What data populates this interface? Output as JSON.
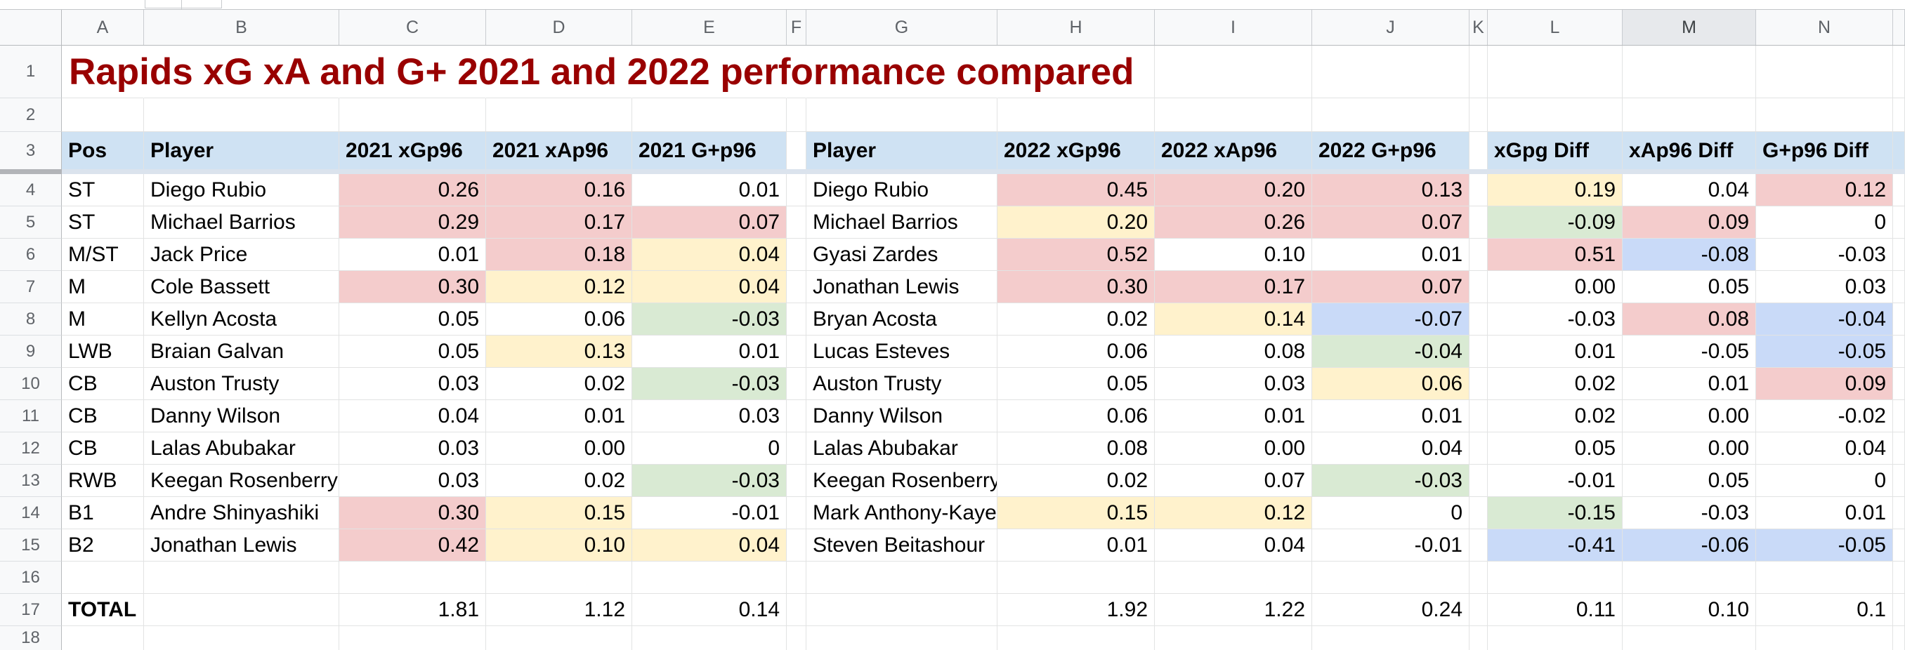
{
  "title": "Rapids xG xA and G+ 2021 and 2022 performance compared",
  "colors": {
    "title_text": "#990000",
    "header_fill": "#cfe2f3",
    "red": "#f4cccc",
    "yellow": "#fff2cc",
    "green": "#d9ead3",
    "blue": "#c9daf8"
  },
  "column_letters": [
    "A",
    "B",
    "C",
    "D",
    "E",
    "F",
    "G",
    "H",
    "I",
    "J",
    "K",
    "L",
    "M",
    "N"
  ],
  "selected_column": "M",
  "visible_row_numbers": [
    1,
    2,
    3,
    4,
    5,
    6,
    7,
    8,
    9,
    10,
    11,
    12,
    13,
    14,
    15,
    16,
    17,
    18
  ],
  "table": {
    "headers_2021": [
      "Pos",
      "Player",
      "2021 xGp96",
      "2021 xAp96",
      "2021 G+p96"
    ],
    "headers_2022": [
      "Player",
      "2022 xGp96",
      "2022 xAp96",
      "2022 G+p96"
    ],
    "headers_diff": [
      "xGpg Diff",
      "xAp96 Diff",
      "G+p96 Diff"
    ],
    "rows": [
      {
        "row": 4,
        "pos": "ST",
        "player_2021": "Diego Rubio",
        "v2021": [
          [
            "0.26",
            "red"
          ],
          [
            "0.16",
            "red"
          ],
          [
            "0.01",
            null
          ]
        ],
        "player_2022": "Diego Rubio",
        "v2022": [
          [
            "0.45",
            "red"
          ],
          [
            "0.20",
            "red"
          ],
          [
            "0.13",
            "red"
          ]
        ],
        "vdiff": [
          [
            "0.19",
            "yellow"
          ],
          [
            "0.04",
            null
          ],
          [
            "0.12",
            "red"
          ]
        ]
      },
      {
        "row": 5,
        "pos": "ST",
        "player_2021": "Michael Barrios",
        "v2021": [
          [
            "0.29",
            "red"
          ],
          [
            "0.17",
            "red"
          ],
          [
            "0.07",
            "red"
          ]
        ],
        "player_2022": "Michael Barrios",
        "v2022": [
          [
            "0.20",
            "yellow"
          ],
          [
            "0.26",
            "red"
          ],
          [
            "0.07",
            "red"
          ]
        ],
        "vdiff": [
          [
            "-0.09",
            "green"
          ],
          [
            "0.09",
            "red"
          ],
          [
            "0",
            null
          ]
        ]
      },
      {
        "row": 6,
        "pos": "M/ST",
        "player_2021": "Jack Price",
        "v2021": [
          [
            "0.01",
            null
          ],
          [
            "0.18",
            "red"
          ],
          [
            "0.04",
            "yellow"
          ]
        ],
        "player_2022": "Gyasi Zardes",
        "v2022": [
          [
            "0.52",
            "red"
          ],
          [
            "0.10",
            null
          ],
          [
            "0.01",
            null
          ]
        ],
        "vdiff": [
          [
            "0.51",
            "red"
          ],
          [
            "-0.08",
            "blue"
          ],
          [
            "-0.03",
            null
          ]
        ]
      },
      {
        "row": 7,
        "pos": "M",
        "player_2021": "Cole Bassett",
        "v2021": [
          [
            "0.30",
            "red"
          ],
          [
            "0.12",
            "yellow"
          ],
          [
            "0.04",
            "yellow"
          ]
        ],
        "player_2022": "Jonathan Lewis",
        "v2022": [
          [
            "0.30",
            "red"
          ],
          [
            "0.17",
            "red"
          ],
          [
            "0.07",
            "red"
          ]
        ],
        "vdiff": [
          [
            "0.00",
            null
          ],
          [
            "0.05",
            null
          ],
          [
            "0.03",
            null
          ]
        ]
      },
      {
        "row": 8,
        "pos": "M",
        "player_2021": "Kellyn Acosta",
        "v2021": [
          [
            "0.05",
            null
          ],
          [
            "0.06",
            null
          ],
          [
            "-0.03",
            "green"
          ]
        ],
        "player_2022": "Bryan Acosta",
        "v2022": [
          [
            "0.02",
            null
          ],
          [
            "0.14",
            "yellow"
          ],
          [
            "-0.07",
            "blue"
          ]
        ],
        "vdiff": [
          [
            "-0.03",
            null
          ],
          [
            "0.08",
            "red"
          ],
          [
            "-0.04",
            "blue"
          ]
        ]
      },
      {
        "row": 9,
        "pos": "LWB",
        "player_2021": "Braian Galvan",
        "v2021": [
          [
            "0.05",
            null
          ],
          [
            "0.13",
            "yellow"
          ],
          [
            "0.01",
            null
          ]
        ],
        "player_2022": "Lucas Esteves",
        "v2022": [
          [
            "0.06",
            null
          ],
          [
            "0.08",
            null
          ],
          [
            "-0.04",
            "green"
          ]
        ],
        "vdiff": [
          [
            "0.01",
            null
          ],
          [
            "-0.05",
            null
          ],
          [
            "-0.05",
            "blue"
          ]
        ]
      },
      {
        "row": 10,
        "pos": "CB",
        "player_2021": "Auston Trusty",
        "v2021": [
          [
            "0.03",
            null
          ],
          [
            "0.02",
            null
          ],
          [
            "-0.03",
            "green"
          ]
        ],
        "player_2022": "Auston Trusty",
        "v2022": [
          [
            "0.05",
            null
          ],
          [
            "0.03",
            null
          ],
          [
            "0.06",
            "yellow"
          ]
        ],
        "vdiff": [
          [
            "0.02",
            null
          ],
          [
            "0.01",
            null
          ],
          [
            "0.09",
            "red"
          ]
        ]
      },
      {
        "row": 11,
        "pos": "CB",
        "player_2021": "Danny Wilson",
        "v2021": [
          [
            "0.04",
            null
          ],
          [
            "0.01",
            null
          ],
          [
            "0.03",
            null
          ]
        ],
        "player_2022": "Danny Wilson",
        "v2022": [
          [
            "0.06",
            null
          ],
          [
            "0.01",
            null
          ],
          [
            "0.01",
            null
          ]
        ],
        "vdiff": [
          [
            "0.02",
            null
          ],
          [
            "0.00",
            null
          ],
          [
            "-0.02",
            null
          ]
        ]
      },
      {
        "row": 12,
        "pos": "CB",
        "player_2021": "Lalas Abubakar",
        "v2021": [
          [
            "0.03",
            null
          ],
          [
            "0.00",
            null
          ],
          [
            "0",
            null
          ]
        ],
        "player_2022": "Lalas Abubakar",
        "v2022": [
          [
            "0.08",
            null
          ],
          [
            "0.00",
            null
          ],
          [
            "0.04",
            null
          ]
        ],
        "vdiff": [
          [
            "0.05",
            null
          ],
          [
            "0.00",
            null
          ],
          [
            "0.04",
            null
          ]
        ]
      },
      {
        "row": 13,
        "pos": "RWB",
        "player_2021": "Keegan Rosenberry",
        "v2021": [
          [
            "0.03",
            null
          ],
          [
            "0.02",
            null
          ],
          [
            "-0.03",
            "green"
          ]
        ],
        "player_2022": "Keegan Rosenberry",
        "v2022": [
          [
            "0.02",
            null
          ],
          [
            "0.07",
            null
          ],
          [
            "-0.03",
            "green"
          ]
        ],
        "vdiff": [
          [
            "-0.01",
            null
          ],
          [
            "0.05",
            null
          ],
          [
            "0",
            null
          ]
        ]
      },
      {
        "row": 14,
        "pos": "B1",
        "player_2021": "Andre Shinyashiki",
        "v2021": [
          [
            "0.30",
            "red"
          ],
          [
            "0.15",
            "yellow"
          ],
          [
            "-0.01",
            null
          ]
        ],
        "player_2022": "Mark Anthony-Kaye",
        "v2022": [
          [
            "0.15",
            "yellow"
          ],
          [
            "0.12",
            "yellow"
          ],
          [
            "0",
            null
          ]
        ],
        "vdiff": [
          [
            "-0.15",
            "green"
          ],
          [
            "-0.03",
            null
          ],
          [
            "0.01",
            null
          ]
        ]
      },
      {
        "row": 15,
        "pos": "B2",
        "player_2021": "Jonathan Lewis",
        "v2021": [
          [
            "0.42",
            "red"
          ],
          [
            "0.10",
            "yellow"
          ],
          [
            "0.04",
            "yellow"
          ]
        ],
        "player_2022": "Steven Beitashour",
        "v2022": [
          [
            "0.01",
            null
          ],
          [
            "0.04",
            null
          ],
          [
            "-0.01",
            null
          ]
        ],
        "vdiff": [
          [
            "-0.41",
            "blue"
          ],
          [
            "-0.06",
            "blue"
          ],
          [
            "-0.05",
            "blue"
          ]
        ]
      }
    ],
    "total_row": {
      "row": 17,
      "label": "TOTAL",
      "v2021": [
        "1.81",
        "1.12",
        "0.14"
      ],
      "v2022": [
        "1.92",
        "1.22",
        "0.24"
      ],
      "vdiff": [
        "0.11",
        "0.10",
        "0.1"
      ]
    }
  }
}
